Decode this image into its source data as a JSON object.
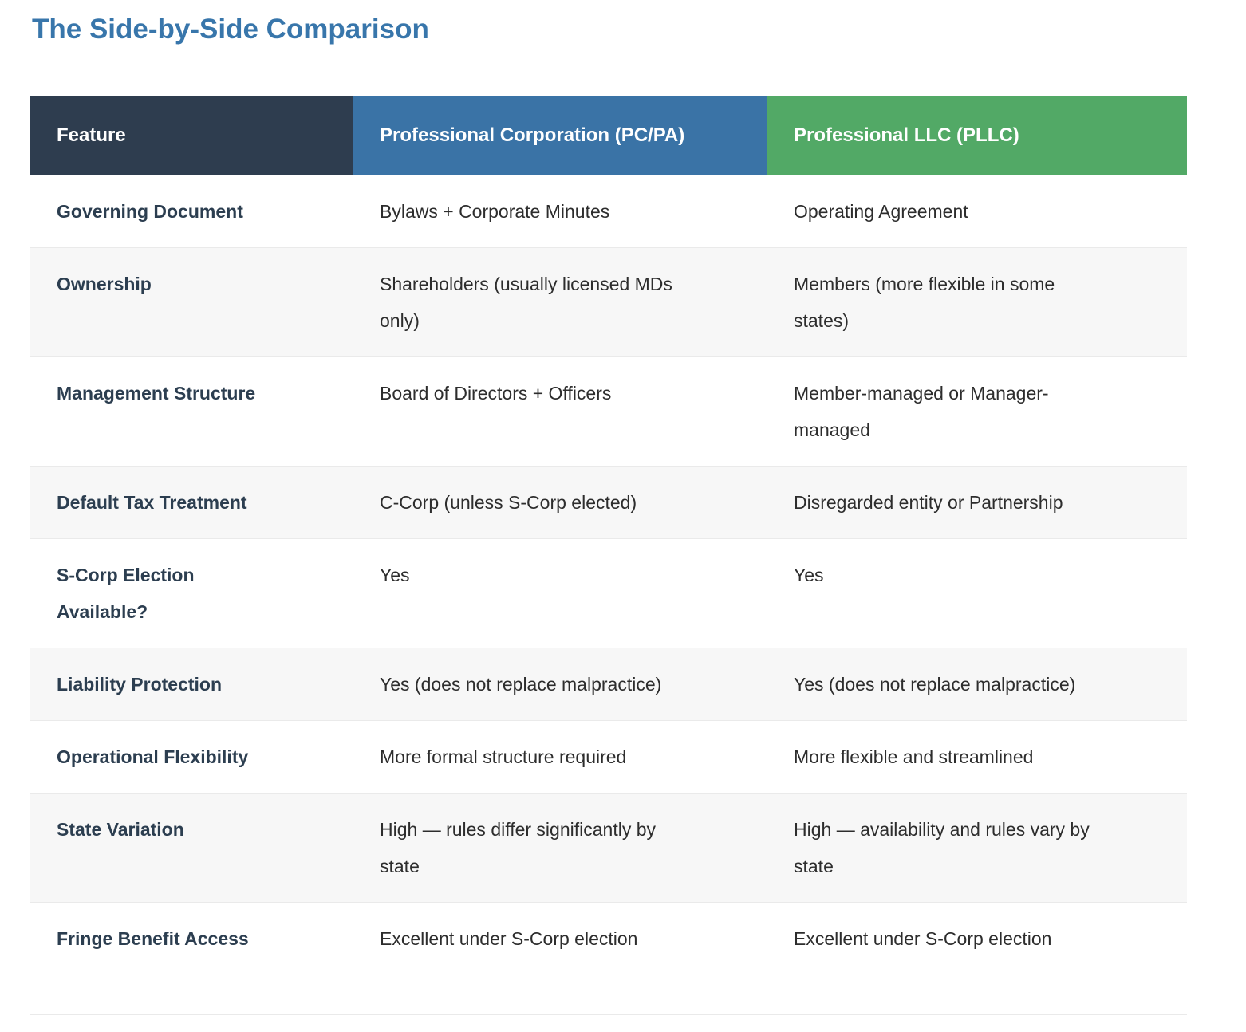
{
  "page": {
    "title": "The Side-by-Side Comparison"
  },
  "colors": {
    "title_accent": "#3876ab",
    "header_feature_bg": "#2e3d4f",
    "header_pc_bg": "#3a73a6",
    "header_pllc_bg": "#52a966",
    "row_alt_bg": "#f7f7f7",
    "row_divider": "#eaeaea",
    "feature_text": "#2c3e50",
    "body_text": "#2d2d2d"
  },
  "table": {
    "columns": [
      {
        "label": "Feature"
      },
      {
        "label": "Professional Corporation (PC/PA)"
      },
      {
        "label": "Professional LLC (PLLC)"
      }
    ],
    "rows": [
      {
        "feature": "Governing Document",
        "pc": "Bylaws + Corporate Minutes",
        "pllc": "Operating Agreement"
      },
      {
        "feature": "Ownership",
        "pc": "Shareholders (usually licensed MDs only)",
        "pllc": "Members (more flexible in some states)"
      },
      {
        "feature": "Management Structure",
        "pc": "Board of Directors + Officers",
        "pllc": "Member-managed or Manager-managed"
      },
      {
        "feature": "Default Tax Treatment",
        "pc": "C-Corp (unless S-Corp elected)",
        "pllc": "Disregarded entity or Partnership"
      },
      {
        "feature": "S-Corp Election Available?",
        "pc": "Yes",
        "pllc": "Yes"
      },
      {
        "feature": "Liability Protection",
        "pc": "Yes (does not replace malpractice)",
        "pllc": "Yes (does not replace malpractice)"
      },
      {
        "feature": "Operational Flexibility",
        "pc": "More formal structure required",
        "pllc": "More flexible and streamlined"
      },
      {
        "feature": "State Variation",
        "pc": "High — rules differ significantly by state",
        "pllc": "High — availability and rules vary by state"
      },
      {
        "feature": "Fringe Benefit Access",
        "pc": "Excellent under S-Corp election",
        "pllc": "Excellent under S-Corp election"
      }
    ]
  }
}
